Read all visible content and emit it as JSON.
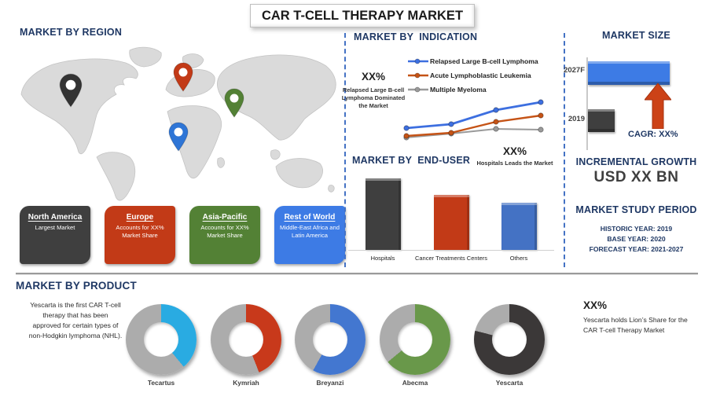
{
  "title": "CAR T-CELL THERAPY MARKET",
  "colors": {
    "header_navy": "#1F3864",
    "separator_blue": "#4472C4",
    "map_gray": "#DADADA",
    "donut_remainder_gray": "#ACACAC"
  },
  "region_section": {
    "header": "MARKET BY REGION",
    "pins": [
      {
        "name": "north-america-pin",
        "color": "#333333"
      },
      {
        "name": "europe-pin",
        "color": "#C23A17"
      },
      {
        "name": "asia-pacific-pin",
        "color": "#538135"
      },
      {
        "name": "africa-pin",
        "color": "#2E75D6"
      }
    ],
    "boxes": [
      {
        "title": "North America",
        "subtitle": "Largest Market",
        "color": "#3F3F3F"
      },
      {
        "title": "Europe",
        "subtitle": "Accounts for XX% Market Share",
        "color": "#C23A17"
      },
      {
        "title": "Asia-Pacific",
        "subtitle": "Accounts for XX% Market Share",
        "color": "#538135"
      },
      {
        "title": "Rest of World",
        "subtitle": "Middle-East Africa and Latin America",
        "color": "#3D7BE5"
      }
    ]
  },
  "indication_section": {
    "header": "MARKET BY  INDICATION",
    "highlight_value": "XX%",
    "highlight_text": "Relapsed Large B-cell Lymphoma Dominated the Market"
  },
  "end_user_section": {
    "header": "MARKET BY  END-USER",
    "highlight_value": "XX%",
    "highlight_text": "Hospitals Leads the Market"
  },
  "market_size_section": {
    "header": "MARKET SIZE",
    "cagr_label": "CAGR: XX%"
  },
  "incremental_growth": {
    "header": "INCREMENTAL GROWTH",
    "value": "USD XX BN"
  },
  "study_period": {
    "header": "MARKET STUDY PERIOD",
    "lines": [
      "HISTORIC YEAR: 2019",
      "BASE YEAR: 2020",
      "FORECAST YEAR: 2021-2027"
    ]
  },
  "product_section": {
    "header": "MARKET BY PRODUCT",
    "left_text": "Yescarta  is the first CAR T-cell therapy that has been approved for certain types of non-Hodgkin lymphoma (NHL).",
    "right_value": "XX%",
    "right_text": "Yescarta holds Lion’s Share for the CAR T-cell Therapy Market"
  },
  "chart_data": [
    {
      "type": "line",
      "title": "MARKET BY INDICATION",
      "x": [
        1,
        2,
        3,
        4
      ],
      "series": [
        {
          "name": "Relapsed Large B-cell Lymphoma",
          "color": "#3D6FE0",
          "values": [
            32,
            37,
            55,
            65
          ]
        },
        {
          "name": "Acute Lymphoblastic Leukemia",
          "color": "#C55316",
          "values": [
            22,
            26,
            40,
            48
          ]
        },
        {
          "name": "Multiple Myeloma",
          "color": "#9A9A9A",
          "values": [
            20,
            25,
            31,
            30
          ]
        }
      ],
      "legend_position": "top-right",
      "axes_visible": false,
      "values_unit": "relative (unlabeled)"
    },
    {
      "type": "bar",
      "title": "MARKET BY END-USER",
      "categories": [
        "Hospitals",
        "Cancer Treatments Centers",
        "Others"
      ],
      "values": [
        91,
        70,
        60
      ],
      "colors": [
        "#3F3F3F",
        "#C23A17",
        "#4472C4"
      ],
      "annotation": "XX% Hospitals Leads the Market",
      "axes_visible": false
    },
    {
      "type": "bar",
      "title": "MARKET SIZE",
      "orientation": "horizontal",
      "categories": [
        "2027F",
        "2019"
      ],
      "values": [
        100,
        33
      ],
      "colors": [
        "#3D7BE5",
        "#3F3F3F"
      ],
      "annotation": "CAGR: XX%",
      "axes_visible": true
    },
    {
      "type": "pie",
      "title": "MARKET BY PRODUCT",
      "donuts": [
        {
          "label": "Tecartus",
          "share_pct": 39,
          "color": "#29ABE2"
        },
        {
          "label": "Kymriah",
          "share_pct": 44,
          "color": "#C8391B"
        },
        {
          "label": "Breyanzi",
          "share_pct": 58,
          "color": "#4377D0"
        },
        {
          "label": "Abecma",
          "share_pct": 64,
          "color": "#69984A"
        },
        {
          "label": "Yescarta",
          "share_pct": 79,
          "color": "#3B3838"
        }
      ],
      "remainder_color": "#ACACAC"
    }
  ]
}
